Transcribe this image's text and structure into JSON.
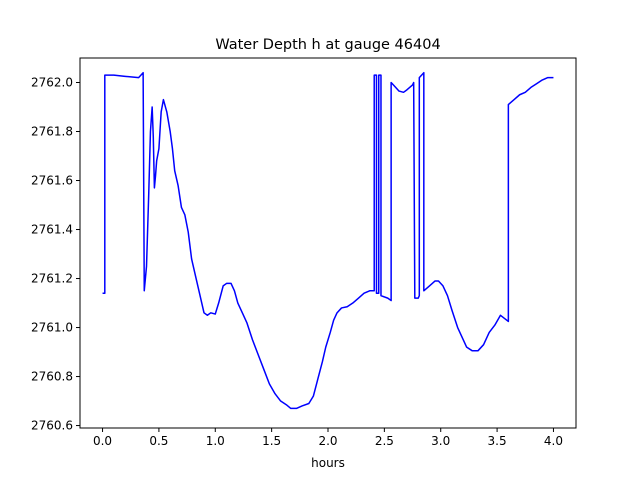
{
  "chart_data": {
    "type": "line",
    "title": "Water Depth h at gauge 46404",
    "xlabel": "hours",
    "ylabel": "",
    "xlim": [
      -0.2,
      4.2
    ],
    "ylim": [
      2760.59,
      2762.1
    ],
    "grid": false,
    "legend": "none",
    "x_ticks": [
      {
        "value": 0.0,
        "label": "0.0"
      },
      {
        "value": 0.5,
        "label": "0.5"
      },
      {
        "value": 1.0,
        "label": "1.0"
      },
      {
        "value": 1.5,
        "label": "1.5"
      },
      {
        "value": 2.0,
        "label": "2.0"
      },
      {
        "value": 2.5,
        "label": "2.5"
      },
      {
        "value": 3.0,
        "label": "3.0"
      },
      {
        "value": 3.5,
        "label": "3.5"
      },
      {
        "value": 4.0,
        "label": "4.0"
      }
    ],
    "y_ticks": [
      {
        "value": 2760.6,
        "label": "2760.6"
      },
      {
        "value": 2760.8,
        "label": "2760.8"
      },
      {
        "value": 2761.0,
        "label": "2761.0"
      },
      {
        "value": 2761.2,
        "label": "2761.2"
      },
      {
        "value": 2761.4,
        "label": "2761.4"
      },
      {
        "value": 2761.6,
        "label": "2761.6"
      },
      {
        "value": 2761.8,
        "label": "2761.8"
      },
      {
        "value": 2762.0,
        "label": "2762.0"
      }
    ],
    "series": [
      {
        "color": "#0000ff",
        "points": [
          [
            0.0,
            2761.14
          ],
          [
            0.02,
            2761.14
          ],
          [
            0.02,
            2762.03
          ],
          [
            0.1,
            2762.03
          ],
          [
            0.2,
            2762.025
          ],
          [
            0.32,
            2762.02
          ],
          [
            0.36,
            2762.04
          ],
          [
            0.37,
            2761.15
          ],
          [
            0.39,
            2761.25
          ],
          [
            0.41,
            2761.55
          ],
          [
            0.425,
            2761.8
          ],
          [
            0.44,
            2761.9
          ],
          [
            0.45,
            2761.78
          ],
          [
            0.46,
            2761.57
          ],
          [
            0.47,
            2761.62
          ],
          [
            0.48,
            2761.68
          ],
          [
            0.5,
            2761.73
          ],
          [
            0.52,
            2761.88
          ],
          [
            0.54,
            2761.93
          ],
          [
            0.57,
            2761.88
          ],
          [
            0.6,
            2761.8
          ],
          [
            0.62,
            2761.73
          ],
          [
            0.64,
            2761.64
          ],
          [
            0.67,
            2761.58
          ],
          [
            0.7,
            2761.49
          ],
          [
            0.73,
            2761.46
          ],
          [
            0.76,
            2761.39
          ],
          [
            0.79,
            2761.28
          ],
          [
            0.83,
            2761.2
          ],
          [
            0.86,
            2761.14
          ],
          [
            0.9,
            2761.06
          ],
          [
            0.93,
            2761.05
          ],
          [
            0.96,
            2761.06
          ],
          [
            1.0,
            2761.055
          ],
          [
            1.03,
            2761.1
          ],
          [
            1.07,
            2761.17
          ],
          [
            1.1,
            2761.18
          ],
          [
            1.14,
            2761.18
          ],
          [
            1.17,
            2761.15
          ],
          [
            1.2,
            2761.1
          ],
          [
            1.24,
            2761.06
          ],
          [
            1.28,
            2761.02
          ],
          [
            1.33,
            2760.95
          ],
          [
            1.38,
            2760.89
          ],
          [
            1.43,
            2760.83
          ],
          [
            1.48,
            2760.77
          ],
          [
            1.53,
            2760.73
          ],
          [
            1.58,
            2760.7
          ],
          [
            1.63,
            2760.685
          ],
          [
            1.67,
            2760.67
          ],
          [
            1.72,
            2760.67
          ],
          [
            1.77,
            2760.68
          ],
          [
            1.83,
            2760.69
          ],
          [
            1.87,
            2760.72
          ],
          [
            1.91,
            2760.79
          ],
          [
            1.95,
            2760.86
          ],
          [
            1.98,
            2760.92
          ],
          [
            2.02,
            2760.98
          ],
          [
            2.05,
            2761.03
          ],
          [
            2.08,
            2761.06
          ],
          [
            2.12,
            2761.08
          ],
          [
            2.17,
            2761.085
          ],
          [
            2.22,
            2761.1
          ],
          [
            2.27,
            2761.12
          ],
          [
            2.32,
            2761.14
          ],
          [
            2.37,
            2761.15
          ],
          [
            2.41,
            2761.15
          ],
          [
            2.41,
            2762.03
          ],
          [
            2.43,
            2762.03
          ],
          [
            2.43,
            2761.14
          ],
          [
            2.45,
            2761.14
          ],
          [
            2.45,
            2762.03
          ],
          [
            2.47,
            2762.03
          ],
          [
            2.47,
            2761.13
          ],
          [
            2.53,
            2761.12
          ],
          [
            2.56,
            2761.11
          ],
          [
            2.56,
            2762.0
          ],
          [
            2.6,
            2761.98
          ],
          [
            2.63,
            2761.965
          ],
          [
            2.67,
            2761.96
          ],
          [
            2.7,
            2761.97
          ],
          [
            2.75,
            2761.99
          ],
          [
            2.76,
            2762.0
          ],
          [
            2.77,
            2761.12
          ],
          [
            2.8,
            2761.12
          ],
          [
            2.81,
            2761.13
          ],
          [
            2.81,
            2762.02
          ],
          [
            2.85,
            2762.04
          ],
          [
            2.85,
            2761.15
          ],
          [
            2.9,
            2761.17
          ],
          [
            2.95,
            2761.19
          ],
          [
            2.98,
            2761.19
          ],
          [
            3.02,
            2761.17
          ],
          [
            3.06,
            2761.13
          ],
          [
            3.1,
            2761.07
          ],
          [
            3.15,
            2761.0
          ],
          [
            3.2,
            2760.95
          ],
          [
            3.23,
            2760.92
          ],
          [
            3.28,
            2760.905
          ],
          [
            3.33,
            2760.905
          ],
          [
            3.38,
            2760.93
          ],
          [
            3.43,
            2760.98
          ],
          [
            3.48,
            2761.01
          ],
          [
            3.53,
            2761.05
          ],
          [
            3.6,
            2761.025
          ],
          [
            3.6,
            2761.91
          ],
          [
            3.65,
            2761.93
          ],
          [
            3.7,
            2761.95
          ],
          [
            3.75,
            2761.96
          ],
          [
            3.8,
            2761.98
          ],
          [
            3.85,
            2761.995
          ],
          [
            3.9,
            2762.01
          ],
          [
            3.95,
            2762.02
          ],
          [
            4.0,
            2762.02
          ]
        ]
      }
    ]
  }
}
